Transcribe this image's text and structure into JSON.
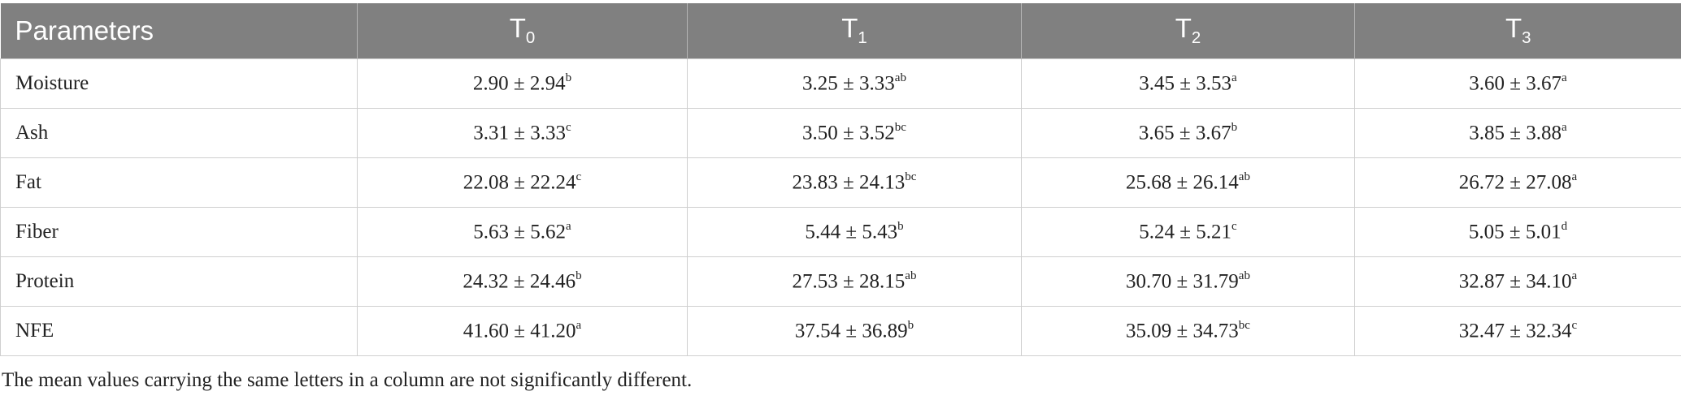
{
  "table": {
    "headers": [
      {
        "text": "Parameters"
      },
      {
        "text": "T",
        "sub": "0"
      },
      {
        "text": "T",
        "sub": "1"
      },
      {
        "text": "T",
        "sub": "2"
      },
      {
        "text": "T",
        "sub": "3"
      }
    ],
    "rows": [
      {
        "label": "Moisture",
        "cells": [
          {
            "text": "2.90 ± 2.94",
            "sup": "b"
          },
          {
            "text": "3.25 ± 3.33",
            "sup": "ab"
          },
          {
            "text": "3.45 ± 3.53",
            "sup": "a"
          },
          {
            "text": "3.60 ± 3.67",
            "sup": "a"
          }
        ]
      },
      {
        "label": "Ash",
        "cells": [
          {
            "text": "3.31 ± 3.33",
            "sup": "c"
          },
          {
            "text": "3.50 ± 3.52",
            "sup": "bc"
          },
          {
            "text": "3.65 ± 3.67",
            "sup": "b"
          },
          {
            "text": "3.85 ± 3.88",
            "sup": "a"
          }
        ]
      },
      {
        "label": "Fat",
        "cells": [
          {
            "text": "22.08 ± 22.24",
            "sup": "c"
          },
          {
            "text": "23.83 ± 24.13",
            "sup": "bc"
          },
          {
            "text": "25.68 ± 26.14",
            "sup": "ab"
          },
          {
            "text": "26.72 ± 27.08",
            "sup": "a"
          }
        ]
      },
      {
        "label": "Fiber",
        "cells": [
          {
            "text": "5.63 ± 5.62",
            "sup": "a"
          },
          {
            "text": "5.44 ± 5.43",
            "sup": "b"
          },
          {
            "text": "5.24 ± 5.21",
            "sup": "c"
          },
          {
            "text": "5.05 ± 5.01",
            "sup": "d"
          }
        ]
      },
      {
        "label": "Protein",
        "cells": [
          {
            "text": "24.32 ± 24.46",
            "sup": "b"
          },
          {
            "text": "27.53 ± 28.15",
            "sup": "ab"
          },
          {
            "text": "30.70 ± 31.79",
            "sup": "ab"
          },
          {
            "text": "32.87 ± 34.10",
            "sup": "a"
          }
        ]
      },
      {
        "label": "NFE",
        "cells": [
          {
            "text": "41.60 ± 41.20",
            "sup": "a"
          },
          {
            "text": "37.54 ± 36.89",
            "sup": "b"
          },
          {
            "text": "35.09 ± 34.73",
            "sup": "bc"
          },
          {
            "text": "32.47 ± 32.34",
            "sup": "c"
          }
        ]
      }
    ],
    "footnote": "The mean values carrying the same letters in a column are not significantly different."
  }
}
